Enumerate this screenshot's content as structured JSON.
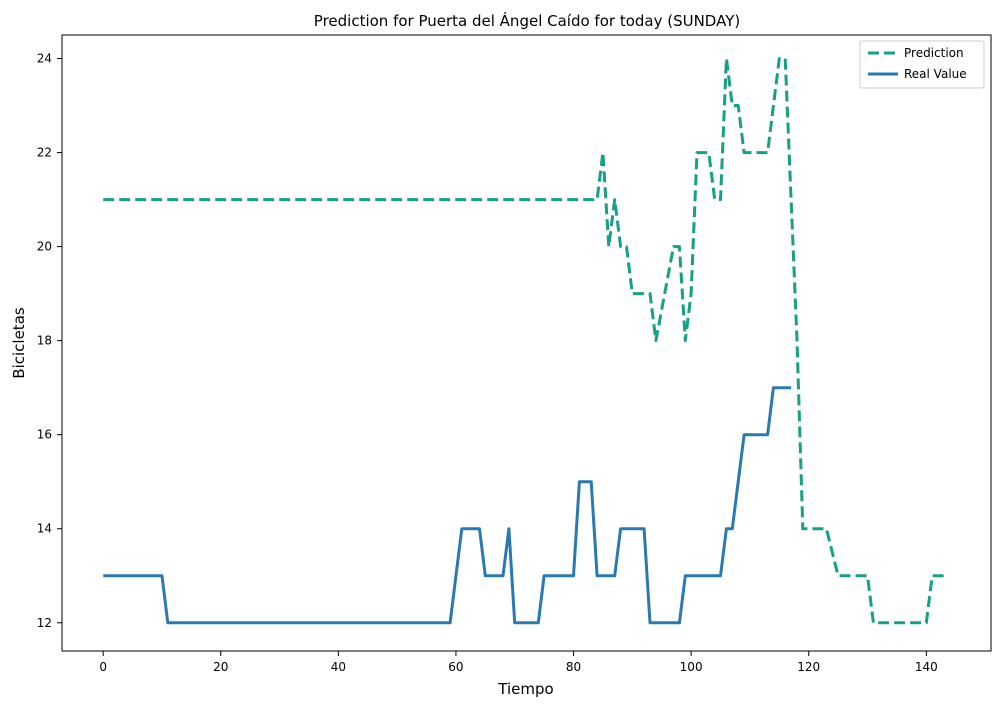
{
  "chart_data": {
    "type": "line",
    "title": "Prediction for Puerta del Ángel Caído for today (SUNDAY)",
    "xlabel": "Tiempo",
    "ylabel": "Bicicletas",
    "xlim": [
      -7,
      151
    ],
    "ylim": [
      11.4,
      24.5
    ],
    "xticks": [
      0,
      20,
      40,
      60,
      80,
      100,
      120,
      140
    ],
    "yticks": [
      12,
      14,
      16,
      18,
      20,
      22,
      24
    ],
    "grid": false,
    "legend": "top-right",
    "series": [
      {
        "name": "Prediction",
        "color": "#16a085",
        "style": "dashed",
        "points": [
          [
            0,
            21
          ],
          [
            84,
            21
          ],
          [
            85,
            22
          ],
          [
            86,
            20
          ],
          [
            87,
            21
          ],
          [
            88,
            20
          ],
          [
            89,
            20
          ],
          [
            90,
            19
          ],
          [
            93,
            19
          ],
          [
            94,
            18
          ],
          [
            97,
            20
          ],
          [
            98,
            20
          ],
          [
            99,
            18
          ],
          [
            100,
            19
          ],
          [
            101,
            22
          ],
          [
            103,
            22
          ],
          [
            104,
            21
          ],
          [
            105,
            21
          ],
          [
            106,
            24
          ],
          [
            107,
            23
          ],
          [
            108,
            23
          ],
          [
            109,
            22
          ],
          [
            113,
            22
          ],
          [
            115,
            24
          ],
          [
            116,
            24
          ],
          [
            118,
            18
          ],
          [
            119,
            14
          ],
          [
            123,
            14
          ],
          [
            125,
            13
          ],
          [
            130,
            13
          ],
          [
            131,
            12
          ],
          [
            140,
            12
          ],
          [
            141,
            13
          ],
          [
            143,
            13
          ]
        ]
      },
      {
        "name": "Real Value",
        "color": "#2a7ab0",
        "style": "solid",
        "points": [
          [
            0,
            13
          ],
          [
            10,
            13
          ],
          [
            11,
            12
          ],
          [
            59,
            12
          ],
          [
            61,
            14
          ],
          [
            64,
            14
          ],
          [
            65,
            13
          ],
          [
            68,
            13
          ],
          [
            69,
            14
          ],
          [
            70,
            12
          ],
          [
            74,
            12
          ],
          [
            75,
            13
          ],
          [
            80,
            13
          ],
          [
            81,
            15
          ],
          [
            83,
            15
          ],
          [
            84,
            13
          ],
          [
            87,
            13
          ],
          [
            88,
            14
          ],
          [
            92,
            14
          ],
          [
            93,
            12
          ],
          [
            98,
            12
          ],
          [
            99,
            13
          ],
          [
            105,
            13
          ],
          [
            106,
            14
          ],
          [
            107,
            14
          ],
          [
            109,
            16
          ],
          [
            113,
            16
          ],
          [
            114,
            17
          ],
          [
            117,
            17
          ]
        ]
      }
    ]
  }
}
